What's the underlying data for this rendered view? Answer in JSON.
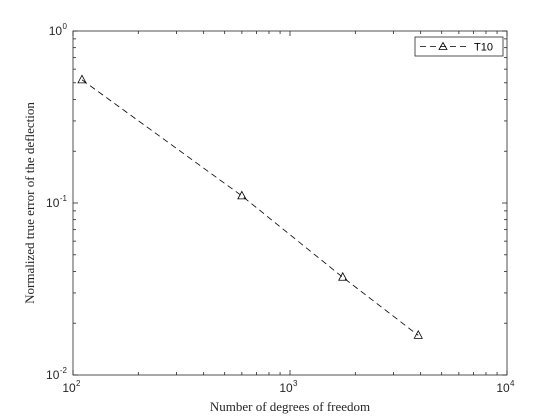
{
  "chart_data": {
    "type": "line",
    "title": "",
    "xlabel": "Number of degrees of freedom",
    "ylabel": "Normalized true error of the deflection",
    "x_scale": "log",
    "y_scale": "log",
    "xlim": [
      100,
      10000
    ],
    "ylim": [
      0.01,
      1
    ],
    "x_ticks": [
      {
        "value": 100,
        "base": "10",
        "exp": "2"
      },
      {
        "value": 1000,
        "base": "10",
        "exp": "3"
      },
      {
        "value": 10000,
        "base": "10",
        "exp": "4"
      }
    ],
    "y_ticks": [
      {
        "value": 0.01,
        "base": "10",
        "exp": "-2"
      },
      {
        "value": 0.1,
        "base": "10",
        "exp": "-1"
      },
      {
        "value": 1,
        "base": "10",
        "exp": "0"
      }
    ],
    "grid": false,
    "legend_position": "top-right",
    "series": [
      {
        "name": "T10",
        "line_style": "dashed",
        "marker": "triangle",
        "color": "#000000",
        "x": [
          110,
          600,
          1750,
          3900
        ],
        "y": [
          0.52,
          0.11,
          0.037,
          0.017
        ]
      }
    ]
  }
}
